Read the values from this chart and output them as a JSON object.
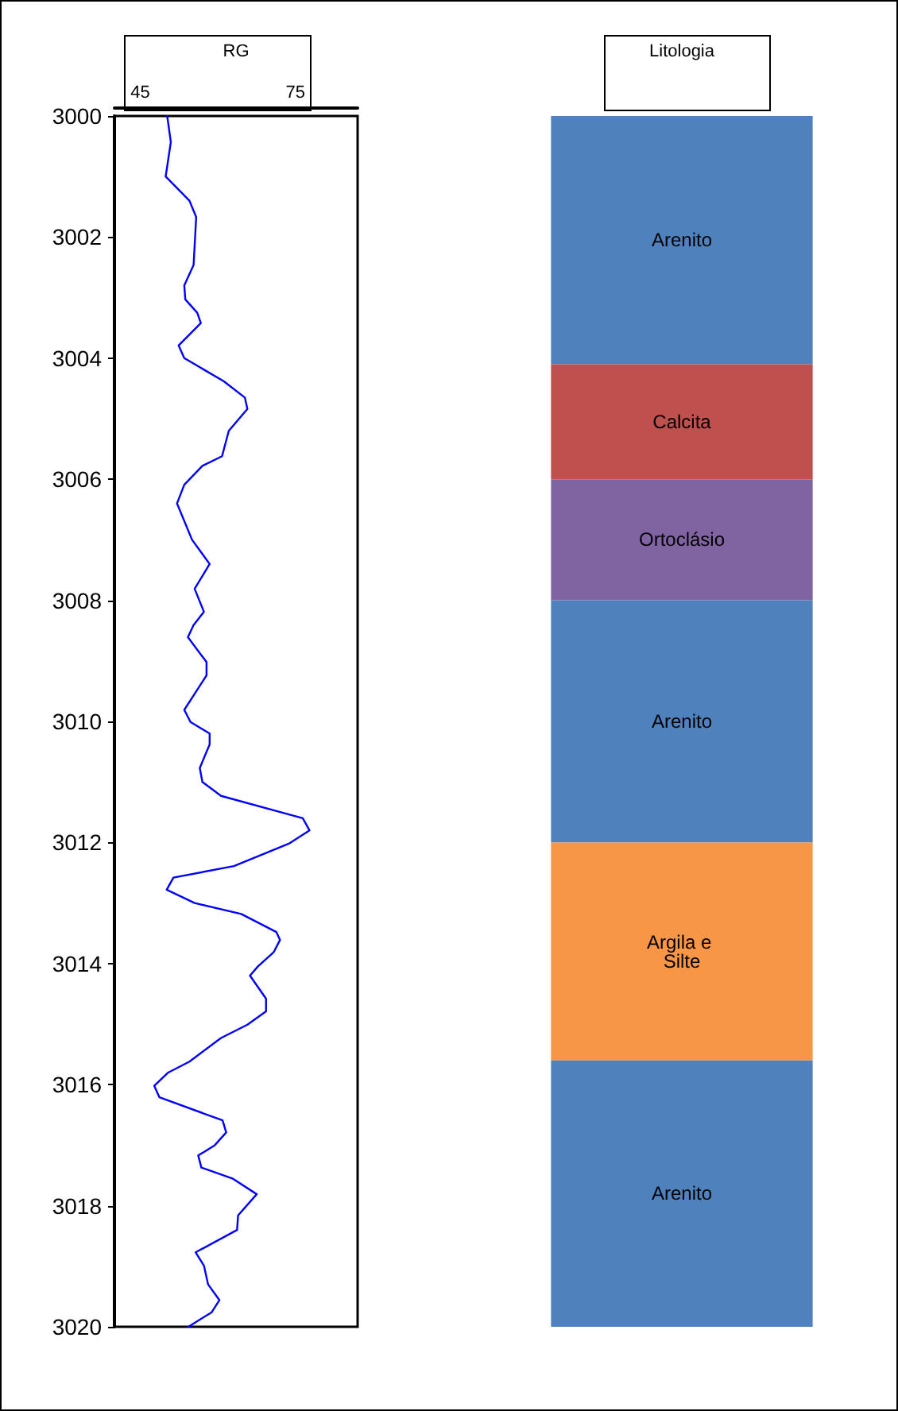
{
  "chart_data": [
    {
      "type": "line",
      "xlabel": "RG",
      "xlim": [
        40,
        87
      ],
      "xticks": [
        45,
        75
      ],
      "ylim": [
        3020,
        3000
      ],
      "yticks": [
        3000,
        3002,
        3004,
        3006,
        3008,
        3010,
        3012,
        3014,
        3016,
        3018,
        3020
      ],
      "grid": false,
      "marker": "none",
      "line_style": "solid",
      "legend": false,
      "series": [
        {
          "color": "#0000ff",
          "x": [
            50.2,
            50.9,
            49.9,
            54.5,
            55.8,
            55.3,
            53.5,
            53.7,
            56.0,
            56.7,
            52.4,
            53.5,
            61.1,
            65.2,
            65.7,
            62.1,
            60.8,
            57.0,
            53.5,
            52.1,
            55.0,
            58.4,
            55.5,
            57.3,
            55.3,
            54.2,
            57.8,
            57.8,
            53.5,
            54.7,
            58.4,
            58.4,
            56.5,
            57.0,
            60.6,
            76.4,
            77.7,
            73.7,
            63.1,
            51.4,
            50.1,
            55.5,
            64.5,
            71.3,
            72.0,
            70.8,
            67.7,
            66.2,
            69.3,
            69.3,
            65.7,
            60.6,
            54.5,
            50.4,
            47.7,
            48.7,
            60.9,
            61.6,
            59.4,
            56.2,
            56.8,
            62.8,
            67.5,
            63.9,
            63.7,
            55.7,
            57.3,
            58.1,
            60.3,
            58.8,
            54.3
          ],
          "values": [
            3000.0,
            3000.43,
            3001.0,
            3001.4,
            3001.67,
            3002.46,
            3002.8,
            3003.03,
            3003.25,
            3003.42,
            3003.79,
            3004.0,
            3004.38,
            3004.65,
            3004.84,
            3005.2,
            3005.62,
            3005.78,
            3006.09,
            3006.4,
            3007.0,
            3007.4,
            3007.81,
            3008.19,
            3008.41,
            3008.61,
            3009.02,
            3009.24,
            3009.81,
            3010.01,
            3010.2,
            3010.38,
            3010.77,
            3011.0,
            3011.23,
            3011.6,
            3011.8,
            3012.02,
            3012.39,
            3012.58,
            3012.78,
            3013.0,
            3013.18,
            3013.48,
            3013.61,
            3013.81,
            3014.05,
            3014.2,
            3014.58,
            3014.79,
            3015.01,
            3015.23,
            3015.62,
            3015.8,
            3016.02,
            3016.21,
            3016.59,
            3016.79,
            3017.0,
            3017.17,
            3017.37,
            3017.55,
            3017.81,
            3018.16,
            3018.4,
            3018.77,
            3018.99,
            3019.3,
            3019.56,
            3019.76,
            3020.0
          ]
        }
      ]
    },
    {
      "type": "bar",
      "xlabel": "Litologia",
      "categories": [
        null
      ],
      "ylim": [
        3020,
        3000
      ],
      "yticks": [
        3000,
        3002,
        3004,
        3006,
        3008,
        3010,
        3012,
        3014,
        3016,
        3018,
        3020
      ],
      "tick_labels": false,
      "legend": false,
      "series": [
        {
          "name": "Arenito",
          "color": "#4f81bd",
          "base": [
            3000
          ],
          "values": [
            4.1
          ]
        },
        {
          "name": "Calcita",
          "color": "#c0504d",
          "base": [
            3004.1
          ],
          "values": [
            1.9
          ]
        },
        {
          "name": "Ortoclásio",
          "color": "#8064a2",
          "base": [
            3006
          ],
          "values": [
            2.0
          ]
        },
        {
          "name": "Arenito",
          "color": "#4f81bd",
          "base": [
            3008
          ],
          "values": [
            4.0
          ]
        },
        {
          "name": "Argila e Silte",
          "color": "#f79646",
          "base": [
            3012
          ],
          "values": [
            3.6
          ]
        },
        {
          "name": "Arenito",
          "color": "#4f81bd",
          "base": [
            3015.6
          ],
          "values": [
            4.4
          ]
        }
      ]
    }
  ]
}
